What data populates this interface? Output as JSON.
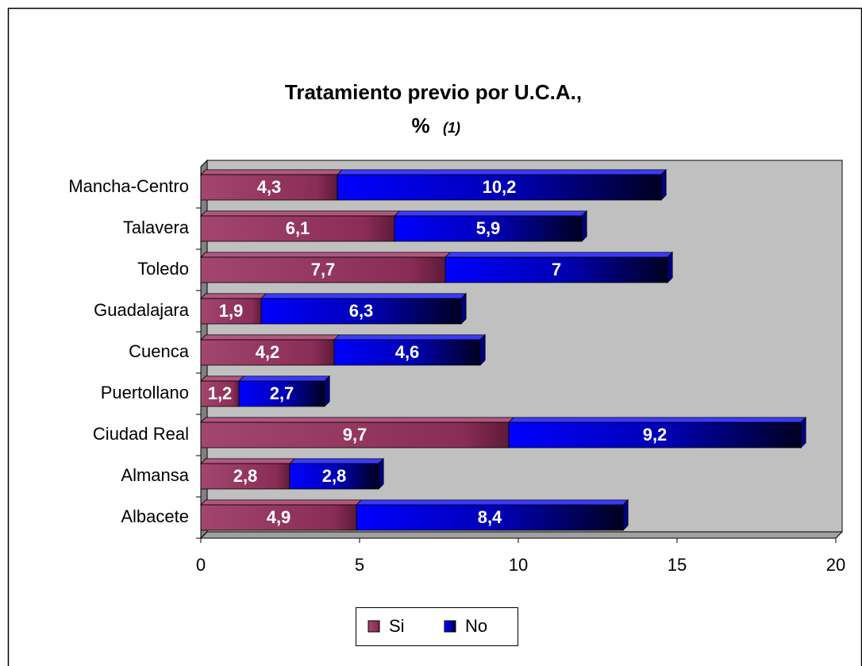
{
  "chart_data": {
    "type": "bar",
    "orientation": "horizontal",
    "stacked": true,
    "title": "Tratamiento previo por U.C.A.,",
    "subtitle": "%",
    "note": "(1)",
    "categories": [
      "Albacete",
      "Almansa",
      "Ciudad Real",
      "Puertollano",
      "Cuenca",
      "Guadalajara",
      "Toledo",
      "Talavera",
      "Mancha-Centro"
    ],
    "series": [
      {
        "name": "Si",
        "color": "#993366",
        "values": [
          4.9,
          2.8,
          9.7,
          1.2,
          4.2,
          1.9,
          7.7,
          6.1,
          4.3
        ],
        "value_labels": [
          "4,9",
          "2,8",
          "9,7",
          "1,2",
          "4,2",
          "1,9",
          "7,7",
          "6,1",
          "4,3"
        ]
      },
      {
        "name": "No",
        "color": "#0000ff",
        "values": [
          8.4,
          2.8,
          9.2,
          2.7,
          4.6,
          6.3,
          7,
          5.9,
          10.2
        ],
        "value_labels": [
          "8,4",
          "2,8",
          "9,2",
          "2,7",
          "4,6",
          "6,3",
          "7",
          "5,9",
          "10,2"
        ]
      }
    ],
    "xlim": [
      0,
      20
    ],
    "xticks": [
      0,
      5,
      10,
      15,
      20
    ],
    "legend": "bottom"
  }
}
